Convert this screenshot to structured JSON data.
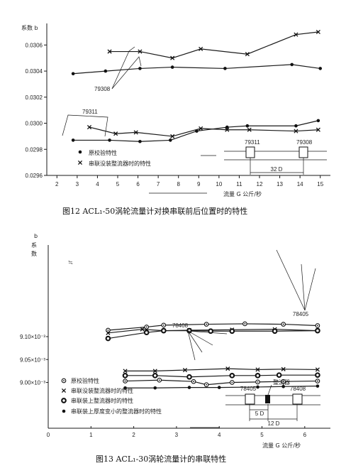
{
  "chart_data": [
    {
      "type": "line",
      "title": "图12   ACL₁-50涡轮流量计对换串联前后位置时的特性",
      "ylabel": "系数 b",
      "xlabel": "流量 G   公斤/秒",
      "ylim": [
        0.0296,
        0.0307
      ],
      "xlim": [
        1.5,
        15.5
      ],
      "x_ticks": [
        "2",
        "3",
        "4",
        "5",
        "6",
        "7",
        "8",
        "9",
        "10",
        "11",
        "12",
        "13",
        "14",
        "15"
      ],
      "y_ticks": [
        "0.0296",
        "0.0298",
        "0.0300",
        "0.0302",
        "0.0304",
        "0.0306"
      ],
      "legend": [
        "原校验特性",
        "串联没装整流器时的特性"
      ],
      "annotations": [
        "79308",
        "79311"
      ],
      "inset": {
        "labels": [
          "79311",
          "79308",
          "S",
          "S",
          "32 D"
        ]
      },
      "series": [
        {
          "name": "原校验特性",
          "marker": "dot",
          "x": [
            2.8,
            4.4,
            6.1,
            7.7,
            10.3,
            13.6,
            15.0
          ],
          "y": [
            0.03038,
            0.0304,
            0.03042,
            0.03043,
            0.03042,
            0.03045,
            0.03042
          ]
        },
        {
          "name": "串联没装整流器时的特性",
          "marker": "cross",
          "x": [
            4.6,
            6.1,
            7.7,
            9.1,
            11.4,
            13.8,
            14.9
          ],
          "y": [
            0.03055,
            0.03055,
            0.0305,
            0.03057,
            0.03053,
            0.03068,
            0.0307
          ]
        },
        {
          "name": "原校验特性",
          "marker": "dot",
          "x": [
            2.8,
            4.6,
            6.1,
            7.6,
            8.9,
            10.4,
            11.4,
            13.8,
            14.9
          ],
          "y": [
            0.02987,
            0.02987,
            0.02986,
            0.02987,
            0.02994,
            0.02997,
            0.02998,
            0.02998,
            0.03002
          ]
        },
        {
          "name": "串联没装整流器时的特性",
          "marker": "cross",
          "x": [
            3.6,
            4.9,
            5.9,
            7.7,
            9.1,
            10.4,
            11.5,
            13.8,
            14.9
          ],
          "y": [
            0.02997,
            0.02992,
            0.02993,
            0.0299,
            0.02996,
            0.02995,
            0.02995,
            0.02994,
            0.02995
          ]
        }
      ]
    },
    {
      "type": "line",
      "title": "图13   ACL₁-30涡轮流量计的串联特性",
      "ylabel": "b 系 数",
      "xlabel": "流量 G 公斤/秒",
      "ylim": [
        0.0089,
        0.0093
      ],
      "xlim": [
        0,
        6.6
      ],
      "x_ticks": [
        "0",
        "1",
        "2",
        "3",
        "4",
        "5",
        "6"
      ],
      "y_ticks": [
        "9.00×10⁻³",
        "9.05×10⁻³",
        "9.10×10⁻³"
      ],
      "legend": [
        "原校验特性",
        "串联没装整流器时的特性",
        "串联装上整流器时的特性",
        "串联装上厚度变小的整流器时的特性"
      ],
      "annotations": [
        "78405",
        "78408"
      ],
      "inset": {
        "labels": [
          "78405",
          "整流器",
          "78408",
          "S",
          "S",
          "5 D",
          "12 D"
        ]
      },
      "series": [
        {
          "name": "原校验特性",
          "marker": "circle-dot",
          "x": [
            1.4,
            2.3,
            2.7,
            3.7,
            4.6,
            5.5,
            6.3
          ],
          "y": [
            0.009114,
            0.009121,
            0.009125,
            0.009127,
            0.009128,
            0.009127,
            0.009124
          ]
        },
        {
          "name": "串联没装整流器时的特性",
          "marker": "cross",
          "x": [
            1.4,
            2.2,
            2.7,
            3.3,
            4.3,
            5.3,
            6.3
          ],
          "y": [
            0.009108,
            0.009116,
            0.009113,
            0.009114,
            0.009115,
            0.009116,
            0.009113
          ]
        },
        {
          "name": "串联装上整流器时的特性",
          "marker": "circle-bold",
          "x": [
            1.4,
            2.3,
            2.7,
            3.3,
            3.8,
            4.3,
            5.3,
            6.3
          ],
          "y": [
            0.009096,
            0.009109,
            0.009113,
            0.009113,
            0.009112,
            0.009112,
            0.009112,
            0.009113
          ]
        },
        {
          "name": "串联没装整流器时的特性",
          "marker": "cross",
          "x": [
            1.8,
            2.5,
            3.2,
            4.2,
            4.9,
            5.5,
            6.3
          ],
          "y": [
            0.009025,
            0.009025,
            0.009027,
            0.00903,
            0.009028,
            0.009029,
            0.009028
          ]
        },
        {
          "name": "串联装上整流器时的特性",
          "marker": "circle-bold",
          "x": [
            1.8,
            2.5,
            3.3,
            4.3,
            4.9,
            5.4,
            6.3
          ],
          "y": [
            0.009015,
            0.009015,
            0.009012,
            0.009015,
            0.009015,
            0.009016,
            0.009016
          ]
        },
        {
          "name": "原校验特性",
          "marker": "circle-dot",
          "x": [
            1.8,
            2.6,
            3.4,
            3.7,
            4.3,
            4.9,
            5.5,
            6.3
          ],
          "y": [
            0.009003,
            0.009005,
            0.009002,
            0.008995,
            0.009,
            0.009001,
            0.009002,
            0.009003
          ]
        },
        {
          "name": "串联装上厚度变小的整流器时的特性",
          "marker": "dot",
          "x": [
            1.8,
            2.5,
            3.3,
            4.0,
            4.9,
            5.5,
            6.3
          ],
          "y": [
            0.008988,
            0.008988,
            0.008989,
            0.008989,
            0.00899,
            0.008991,
            0.008992
          ]
        }
      ]
    }
  ]
}
